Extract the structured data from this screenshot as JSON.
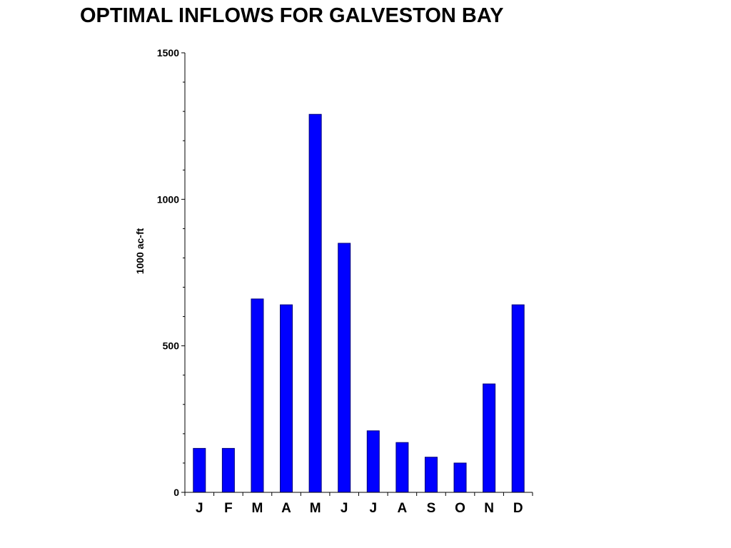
{
  "chart_data": {
    "type": "bar",
    "title": "OPTIMAL INFLOWS FOR GALVESTON BAY",
    "xlabel": "",
    "ylabel": "1000 ac-ft",
    "categories": [
      "J",
      "F",
      "M",
      "A",
      "M",
      "J",
      "J",
      "A",
      "S",
      "O",
      "N",
      "D"
    ],
    "values": [
      150,
      150,
      660,
      640,
      1290,
      850,
      210,
      170,
      120,
      100,
      370,
      640
    ],
    "ylim": [
      0,
      1500
    ],
    "yticks": [
      0,
      500,
      1000,
      1500
    ],
    "ytick_labels": [
      "0",
      "500",
      "1000",
      "1500"
    ],
    "grid": false,
    "legend": "none",
    "colors": {
      "bar": "#0000ff",
      "bar_edge": "#00007a",
      "axis": "#000000"
    }
  }
}
